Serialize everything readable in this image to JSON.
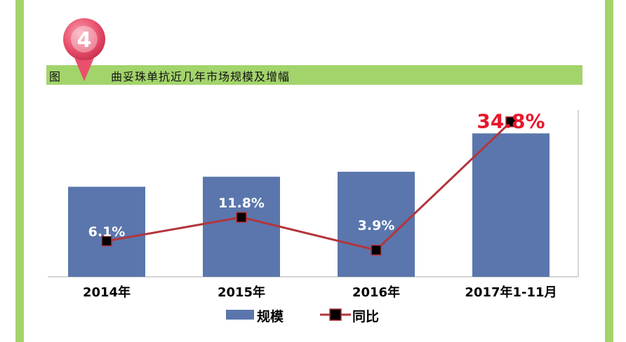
{
  "badge": {
    "number": "4"
  },
  "title": {
    "prefix": "图",
    "text": "曲妥珠单抗近几年市场规模及增幅"
  },
  "colors": {
    "frame_green": "#a3d46b",
    "bar_blue": "#5a76ad",
    "line_red": "#b3353c",
    "highlight_red": "#e8172c",
    "badge_pink": "#e9506d"
  },
  "chart_data": {
    "type": "bar",
    "title": "曲妥珠单抗近几年市场规模及增幅",
    "categories": [
      "2014年",
      "2015年",
      "2016年",
      "2017年1-11月"
    ],
    "series": [
      {
        "name": "规模",
        "type": "bar",
        "values": [
          54,
          60,
          63,
          86
        ]
      },
      {
        "name": "同比",
        "type": "line",
        "values": [
          6.1,
          11.8,
          3.9,
          34.8
        ]
      }
    ],
    "data_labels": [
      "6.1%",
      "11.8%",
      "3.9%",
      "34.8%"
    ],
    "ylim_bar": [
      0,
      100
    ],
    "ylim_line": [
      0,
      40
    ],
    "grid": false,
    "legend_position": "bottom",
    "legend": [
      "规模",
      "同比"
    ]
  }
}
